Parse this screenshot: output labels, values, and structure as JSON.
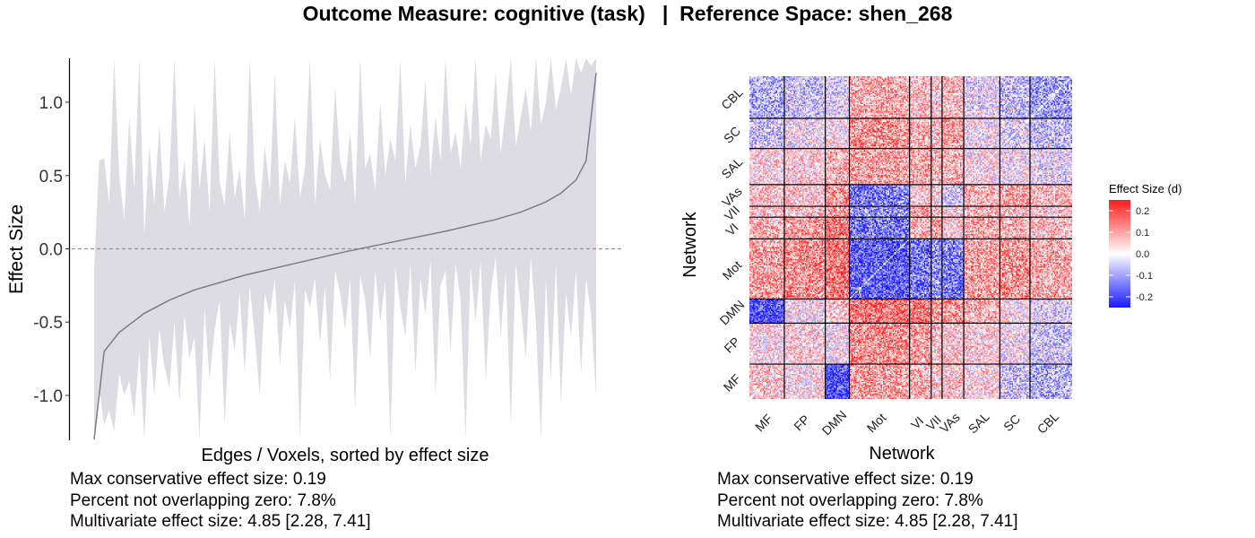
{
  "title": "Outcome Measure: cognitive (task)   |  Reference Space: shen_268",
  "colors": {
    "ribbon": "#dcdce2",
    "line": "#7e7a8e",
    "zero_line": "#d47a7a",
    "heat_low": "#1a1aff",
    "heat_mid": "#ffffff",
    "heat_high": "#ff1a1a"
  },
  "stats_left": [
    "Max conservative effect size: 0.19",
    "Percent not overlapping zero: 7.8%",
    "Multivariate effect size: 4.85 [2.28, 7.41]"
  ],
  "stats_right": [
    "Max conservative effect size: 0.19",
    "Percent not overlapping zero: 7.8%",
    "Multivariate effect size: 4.85 [2.28, 7.41]"
  ],
  "chart_data": [
    {
      "type": "line",
      "xlabel": "Edges / Voxels, sorted by effect size",
      "ylabel": "Effect Size",
      "ylim": [
        -1.3,
        1.3
      ],
      "y_ticks": [
        "-1.0",
        "-0.5",
        "0.0",
        "0.5",
        "1.0"
      ],
      "y_tick_values": [
        -1.0,
        -0.5,
        0.0,
        0.5,
        1.0
      ],
      "reference_line": 0,
      "n_points": 101,
      "series": [
        {
          "x": [
            0,
            0.02,
            0.05,
            0.1,
            0.15,
            0.2,
            0.3,
            0.4,
            0.5,
            0.6,
            0.7,
            0.8,
            0.85,
            0.9,
            0.93,
            0.96,
            0.98,
            1.0
          ],
          "values": [
            -1.3,
            -0.7,
            -0.57,
            -0.44,
            -0.35,
            -0.28,
            -0.18,
            -0.1,
            -0.02,
            0.05,
            0.12,
            0.2,
            0.25,
            0.32,
            0.38,
            0.47,
            0.6,
            1.2
          ]
        }
      ],
      "ci_lower": [
        -1.3,
        -0.95,
        -1.2,
        -1.1,
        -1.25,
        -0.85,
        -1.0,
        -0.9,
        -1.15,
        -0.7,
        -1.3,
        -0.6,
        -1.0,
        -0.55,
        -0.8,
        -0.95,
        -0.5,
        -1.05,
        -0.45,
        -0.75,
        -0.6,
        -1.3,
        -0.4,
        -0.9,
        -0.55,
        -0.35,
        -1.2,
        -0.5,
        -0.7,
        -0.3,
        -0.85,
        -0.25,
        -0.6,
        -1.0,
        -0.3,
        -0.45,
        -0.2,
        -0.8,
        -0.35,
        -0.55,
        -0.22,
        -1.3,
        -0.28,
        -0.4,
        -0.2,
        -0.65,
        -0.25,
        -0.9,
        -0.15,
        -0.3,
        -0.55,
        -0.2,
        -1.1,
        -0.18,
        -0.35,
        -0.75,
        -0.15,
        -0.5,
        -0.22,
        -1.3,
        -0.12,
        -0.4,
        -0.6,
        -0.1,
        -0.85,
        -0.2,
        -0.45,
        -0.08,
        -1.0,
        -0.25,
        -0.15,
        -0.7,
        -0.1,
        -0.35,
        -1.3,
        -0.12,
        -0.5,
        -0.08,
        -0.9,
        -0.3,
        -0.05,
        -0.6,
        -0.15,
        -1.2,
        -0.1,
        -0.4,
        -0.75,
        -0.05,
        -0.5,
        -1.3,
        -0.2,
        -0.9,
        -0.1,
        -1.05,
        -0.3,
        -0.6,
        -0.15,
        -0.85,
        -0.2,
        -0.45,
        -1.0
      ],
      "ci_upper": [
        -0.15,
        0.6,
        0.62,
        0.3,
        1.3,
        0.5,
        0.2,
        0.9,
        0.4,
        1.3,
        0.1,
        0.7,
        0.3,
        0.85,
        0.25,
        0.5,
        1.3,
        0.35,
        0.6,
        0.15,
        1.0,
        0.4,
        0.75,
        0.25,
        1.3,
        0.45,
        0.3,
        0.8,
        0.35,
        0.55,
        0.2,
        1.3,
        0.5,
        0.25,
        0.7,
        0.4,
        1.2,
        0.3,
        0.6,
        0.45,
        0.9,
        0.35,
        0.55,
        1.3,
        0.3,
        0.75,
        0.5,
        0.4,
        1.1,
        0.6,
        0.45,
        0.8,
        0.3,
        1.3,
        0.55,
        0.65,
        0.4,
        1.0,
        0.5,
        0.75,
        0.6,
        1.3,
        0.45,
        0.85,
        0.55,
        0.7,
        1.15,
        0.5,
        0.9,
        0.6,
        1.3,
        0.65,
        0.8,
        0.55,
        1.0,
        0.7,
        1.3,
        0.6,
        0.85,
        0.75,
        1.2,
        0.65,
        0.95,
        1.3,
        0.7,
        0.9,
        1.1,
        0.8,
        1.3,
        0.85,
        1.0,
        1.3,
        0.95,
        1.1,
        1.3,
        1.05,
        1.3,
        1.2,
        1.3,
        1.25,
        1.3
      ]
    },
    {
      "type": "heatmap",
      "xlabel": "Network",
      "ylabel": "Network",
      "networks": [
        "MF",
        "FP",
        "DMN",
        "Mot",
        "VI",
        "VII",
        "VAs",
        "SAL",
        "SC",
        "CBL"
      ],
      "network_sizes": [
        29,
        34,
        20,
        50,
        18,
        9,
        18,
        30,
        25,
        35
      ],
      "legend_title": "Effect Size (d)",
      "legend_ticks": [
        "0.2",
        "0.1",
        "0.0",
        "-0.1",
        "-0.2"
      ],
      "legend_values": [
        0.2,
        0.1,
        0.0,
        -0.1,
        -0.2
      ],
      "value_range": [
        -0.25,
        0.25
      ],
      "block_means": [
        [
          0.05,
          0.02,
          -0.2,
          0.1,
          0.08,
          0.05,
          0.06,
          0.03,
          -0.05,
          -0.08
        ],
        [
          0.02,
          0.04,
          0.0,
          0.12,
          0.1,
          0.06,
          0.05,
          0.04,
          0.0,
          -0.05
        ],
        [
          -0.2,
          0.0,
          0.05,
          0.15,
          0.14,
          0.1,
          0.12,
          0.08,
          0.02,
          -0.03
        ],
        [
          0.1,
          0.12,
          0.15,
          -0.18,
          -0.15,
          -0.12,
          -0.14,
          0.1,
          0.12,
          0.09
        ],
        [
          0.08,
          0.1,
          0.14,
          -0.15,
          0.08,
          0.1,
          0.05,
          0.09,
          0.08,
          0.06
        ],
        [
          0.05,
          0.06,
          0.1,
          -0.12,
          0.1,
          0.06,
          0.04,
          0.07,
          0.06,
          0.05
        ],
        [
          0.06,
          0.05,
          0.12,
          -0.14,
          0.05,
          0.04,
          -0.05,
          0.08,
          0.1,
          0.07
        ],
        [
          0.03,
          0.04,
          0.08,
          0.1,
          0.09,
          0.07,
          0.08,
          0.02,
          0.0,
          -0.02
        ],
        [
          -0.05,
          0.0,
          0.02,
          0.12,
          0.08,
          0.06,
          0.1,
          0.0,
          -0.03,
          -0.06
        ],
        [
          -0.08,
          -0.05,
          -0.03,
          0.09,
          0.06,
          0.05,
          0.07,
          -0.02,
          -0.06,
          -0.1
        ]
      ]
    }
  ]
}
